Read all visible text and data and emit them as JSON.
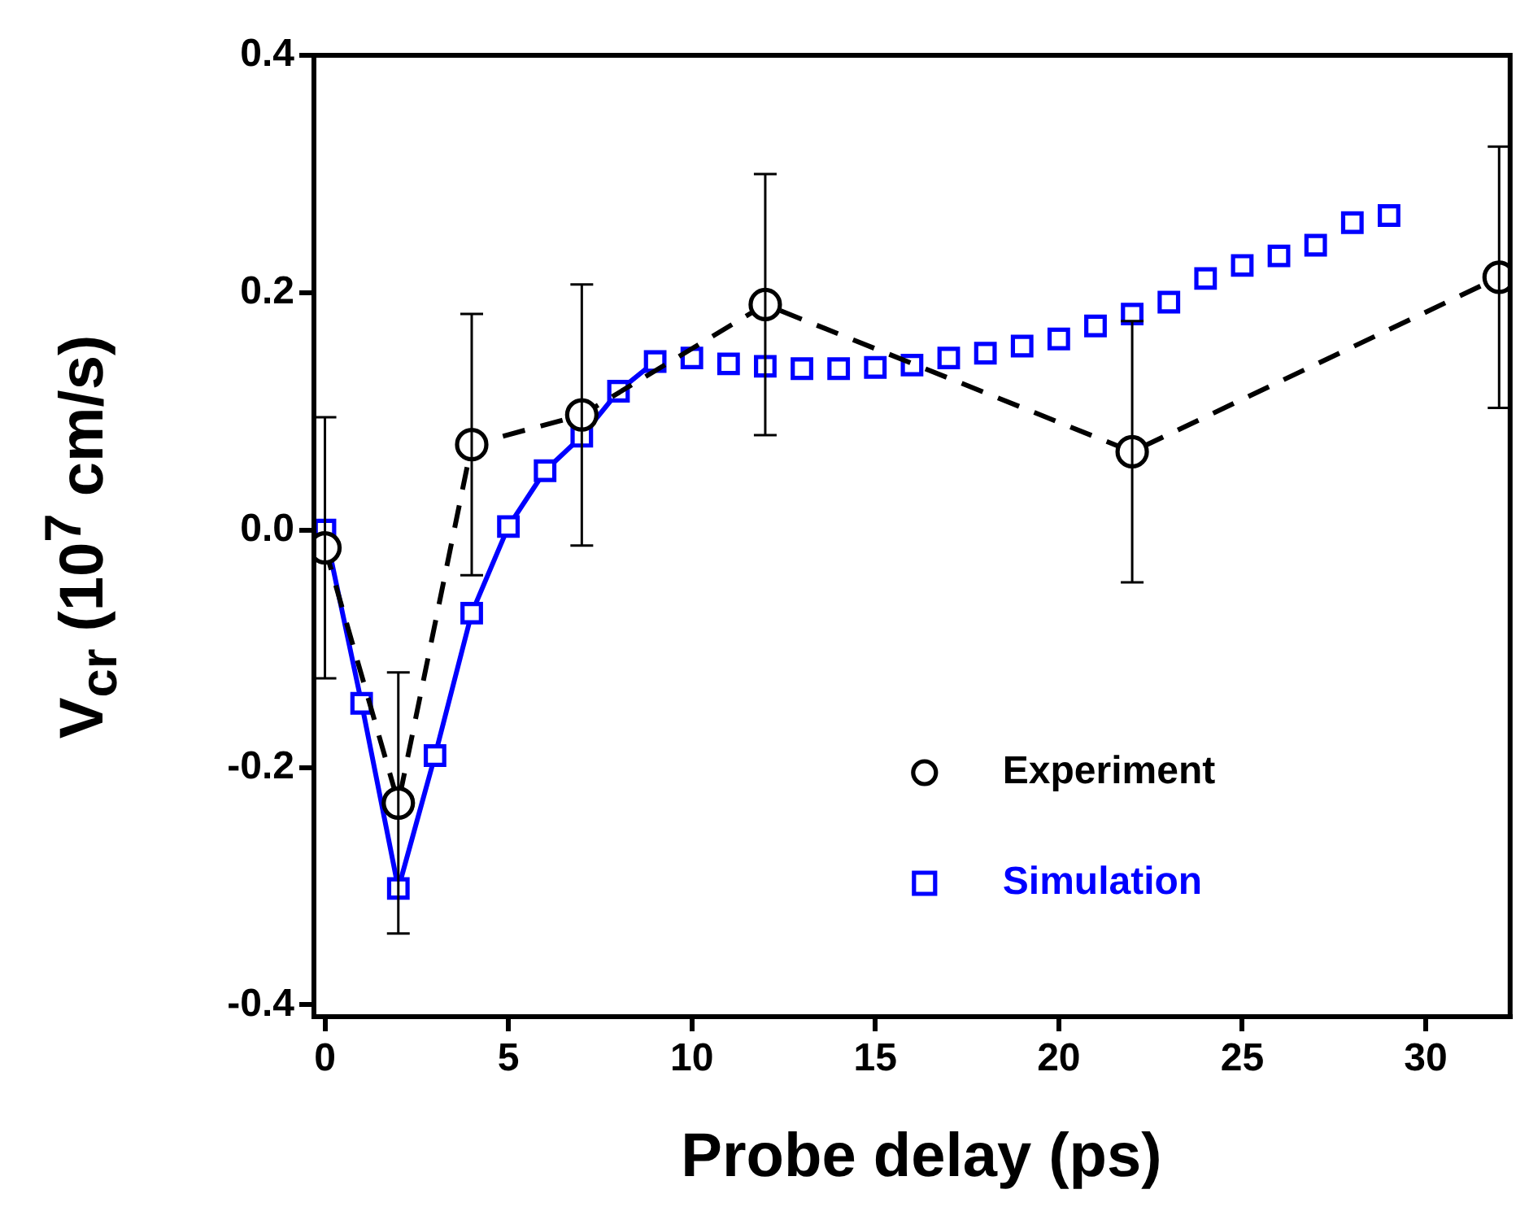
{
  "chart_data": {
    "type": "line",
    "xlabel": "Probe delay (ps)",
    "ylabel": "V$_{cr}$ (10$^{7}$ cm/s)",
    "xlim": [
      -0.3,
      32.3
    ],
    "ylim": [
      -0.41,
      0.4
    ],
    "xticks": [
      0,
      5,
      10,
      15,
      20,
      25,
      30
    ],
    "yticks": [
      -0.4,
      -0.2,
      {
        "value": 0,
        "label": "0.0"
      },
      0.2,
      0.4
    ],
    "legend": "bottom right",
    "series": [
      {
        "name": "Experiment",
        "color": "#000000",
        "marker": "circle",
        "line_style": "dashed",
        "x": [
          0,
          2,
          4,
          7,
          12,
          22,
          32
        ],
        "values": [
          -0.015,
          -0.23,
          0.072,
          0.097,
          0.19,
          0.066,
          0.213
        ],
        "errors": [
          0.11,
          0.11,
          0.11,
          0.11,
          0.11,
          0.11,
          0.11
        ]
      },
      {
        "name": "Simulation",
        "type": "scatter",
        "color": "#0000ff",
        "marker": "square",
        "x": [
          0,
          1,
          2,
          3,
          4,
          5,
          6,
          7,
          8,
          9,
          10,
          11,
          12,
          13,
          14,
          15,
          16,
          17,
          18,
          19,
          20,
          21,
          22,
          23,
          24,
          25,
          26,
          27,
          28,
          29
        ],
        "values": [
          0.0,
          -0.146,
          -0.302,
          -0.19,
          -0.07,
          0.003,
          0.05,
          0.079,
          0.117,
          0.142,
          0.145,
          0.14,
          0.138,
          0.136,
          0.136,
          0.137,
          0.139,
          0.145,
          0.149,
          0.155,
          0.161,
          0.172,
          0.182,
          0.192,
          0.212,
          0.223,
          0.231,
          0.24,
          0.259,
          0.265
        ]
      },
      {
        "color": "#0000ff",
        "marker": "none",
        "line_style": "solid",
        "x": [
          0,
          1,
          2,
          3,
          4,
          5,
          6,
          7,
          8,
          9
        ],
        "values": [
          0.0,
          -0.146,
          -0.302,
          -0.19,
          -0.07,
          0.003,
          0.05,
          0.079,
          0.117,
          0.142
        ]
      }
    ]
  }
}
